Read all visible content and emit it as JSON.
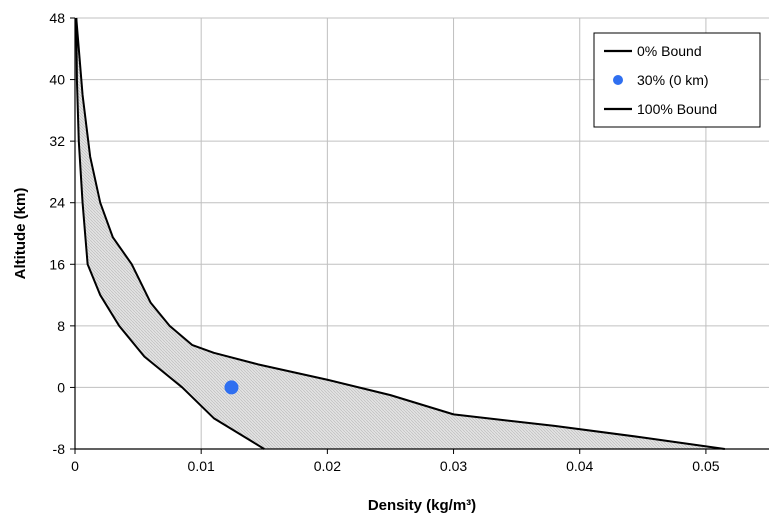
{
  "chart_data": {
    "type": "line",
    "title": "",
    "xlabel": "Density (kg/m³)",
    "ylabel": "Altitude (km)",
    "xlim": [
      0,
      0.055
    ],
    "ylim": [
      -8,
      48
    ],
    "x_ticks": [
      "0",
      "0.01",
      "0.02",
      "0.03",
      "0.04",
      "0.05"
    ],
    "y_ticks": [
      "48",
      "40",
      "32",
      "24",
      "16",
      "8",
      "0",
      "-8"
    ],
    "grid": true,
    "legend_position": "top-right",
    "shaded_region": "between 0% Bound and 100% Bound",
    "colors": {
      "bound": "#000000",
      "point": "#2f6ff0",
      "fill": "#d9d9d9",
      "grid": "#c0c0c0"
    },
    "series": [
      {
        "name": "0% Bound",
        "style": "line",
        "points": [
          [
            0.015,
            -8
          ],
          [
            0.011,
            -4
          ],
          [
            0.0085,
            0
          ],
          [
            0.0055,
            4
          ],
          [
            0.0035,
            8
          ],
          [
            0.002,
            12
          ],
          [
            0.001,
            16
          ],
          [
            0.0006,
            24
          ],
          [
            0.0003,
            32
          ],
          [
            0.00015,
            40
          ],
          [
            0.0001,
            48
          ]
        ]
      },
      {
        "name": "30% (0 km)",
        "style": "point",
        "points": [
          [
            0.0124,
            0
          ]
        ]
      },
      {
        "name": "100% Bound",
        "style": "line",
        "points": [
          [
            0.0515,
            -8
          ],
          [
            0.045,
            -6.5
          ],
          [
            0.038,
            -5
          ],
          [
            0.03,
            -3.5
          ],
          [
            0.025,
            -1
          ],
          [
            0.02,
            1
          ],
          [
            0.0145,
            3
          ],
          [
            0.011,
            4.5
          ],
          [
            0.0093,
            5.5
          ],
          [
            0.0075,
            8
          ],
          [
            0.006,
            11
          ],
          [
            0.0045,
            16
          ],
          [
            0.003,
            19.5
          ],
          [
            0.002,
            24
          ],
          [
            0.0012,
            30
          ],
          [
            0.0006,
            38
          ],
          [
            0.0002,
            46
          ],
          [
            0.0001,
            48
          ]
        ]
      }
    ]
  }
}
